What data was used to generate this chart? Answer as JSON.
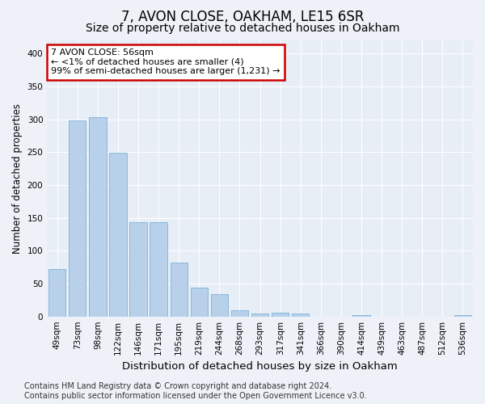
{
  "title": "7, AVON CLOSE, OAKHAM, LE15 6SR",
  "subtitle": "Size of property relative to detached houses in Oakham",
  "xlabel": "Distribution of detached houses by size in Oakham",
  "ylabel": "Number of detached properties",
  "categories": [
    "49sqm",
    "73sqm",
    "98sqm",
    "122sqm",
    "146sqm",
    "171sqm",
    "195sqm",
    "219sqm",
    "244sqm",
    "268sqm",
    "293sqm",
    "317sqm",
    "341sqm",
    "366sqm",
    "390sqm",
    "414sqm",
    "439sqm",
    "463sqm",
    "487sqm",
    "512sqm",
    "536sqm"
  ],
  "values": [
    72,
    298,
    303,
    249,
    144,
    143,
    82,
    44,
    34,
    10,
    5,
    6,
    5,
    0,
    0,
    2,
    0,
    0,
    0,
    0,
    2
  ],
  "bar_color": "#b8d0ea",
  "bar_edge_color": "#6aaad4",
  "annotation_text": "7 AVON CLOSE: 56sqm\n← <1% of detached houses are smaller (4)\n99% of semi-detached houses are larger (1,231) →",
  "annotation_box_color": "#ffffff",
  "annotation_box_edge_color": "#cc0000",
  "ylim": [
    0,
    420
  ],
  "yticks": [
    0,
    50,
    100,
    150,
    200,
    250,
    300,
    350,
    400
  ],
  "footer_line1": "Contains HM Land Registry data © Crown copyright and database right 2024.",
  "footer_line2": "Contains public sector information licensed under the Open Government Licence v3.0.",
  "title_fontsize": 12,
  "subtitle_fontsize": 10,
  "xlabel_fontsize": 9.5,
  "ylabel_fontsize": 8.5,
  "tick_fontsize": 7.5,
  "annotation_fontsize": 8,
  "footer_fontsize": 7,
  "background_color": "#eef2f8",
  "plot_background_color": "#e8eef6",
  "grid_color": "#ffffff"
}
